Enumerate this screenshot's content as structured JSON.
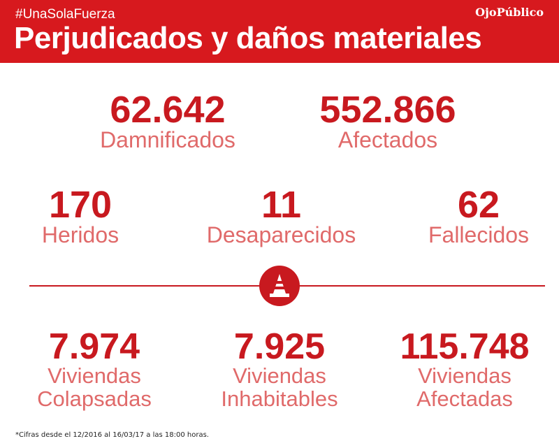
{
  "header": {
    "hashtag": "#UnaSolaFuerza",
    "title": "Perjudicados y daños materiales",
    "brand": "OjoPúblico"
  },
  "row1": [
    {
      "value": "62.642",
      "label": "Damnificados"
    },
    {
      "value": "552.866",
      "label": "Afectados"
    }
  ],
  "row2": [
    {
      "value": "170",
      "label": "Heridos"
    },
    {
      "value": "11",
      "label": "Desaparecidos"
    },
    {
      "value": "62",
      "label": "Fallecidos"
    }
  ],
  "divider_icon": "traffic-cone-icon",
  "row3": [
    {
      "value": "7.974",
      "label1": "Viviendas",
      "label2": "Colapsadas"
    },
    {
      "value": "7.925",
      "label1": "Viviendas",
      "label2": "Inhabitables"
    },
    {
      "value": "115.748",
      "label1": "Viviendas",
      "label2": "Afectadas"
    }
  ],
  "footnote": "*Cifras desde el 12/2016 al 16/03/17 a las 18:00 horas.",
  "colors": {
    "brand_red": "#d7191e",
    "number_red": "#c8191f",
    "label_pink": "#e06a6a"
  }
}
